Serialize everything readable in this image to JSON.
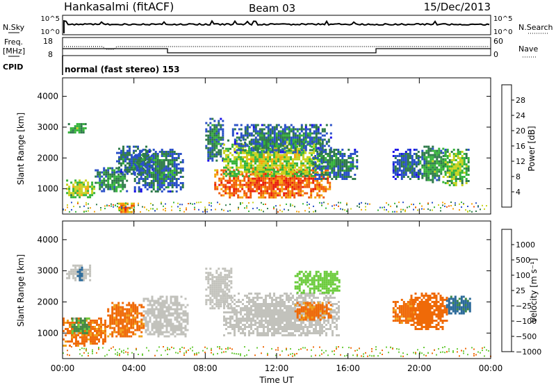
{
  "header": {
    "station": "Hankasalmi (fitACF)",
    "beam": "Beam 03",
    "date": "15/Dec/2013"
  },
  "top_panels": {
    "nsky_label": "N.Sky",
    "nsearch_label": "N.Search",
    "freq_label_1": "Freq.",
    "freq_label_2": "[MHz]",
    "nave_label": "Nave",
    "cpid_label": "CPID",
    "cpid_text": "normal (fast stereo) 153",
    "noise_ticks": {
      "top": "10^5",
      "bottom": "10^0"
    },
    "freq_ticks": {
      "top": "18",
      "bottom": "8"
    },
    "nave_ticks": {
      "top": "60",
      "bottom": "0"
    }
  },
  "chart_data": [
    {
      "type": "heatmap",
      "name": "power",
      "ylabel": "Slant Range [km]",
      "xlabel": "",
      "x_ticks": [
        "00:00",
        "04:00",
        "08:00",
        "12:00",
        "16:00",
        "20:00",
        "00:00"
      ],
      "x_range_hours": [
        0,
        24
      ],
      "y_ticks": [
        1000,
        2000,
        3000,
        4000
      ],
      "ylim": [
        180,
        4600
      ],
      "colorbar": {
        "label": "Power [dB]",
        "ticks": [
          "4",
          "8",
          "12",
          "16",
          "20",
          "24",
          "28"
        ],
        "colors": [
          "#1a10e8",
          "#2a50c8",
          "#2e7a4a",
          "#35b43a",
          "#c8d21e",
          "#f5a20a",
          "#f05a08",
          "#e81c08"
        ]
      },
      "echo_regions": [
        {
          "x": [
            0.3,
            1.3
          ],
          "y": [
            2800,
            3200
          ],
          "value": 14
        },
        {
          "x": [
            0.2,
            1.8
          ],
          "y": [
            700,
            1300
          ],
          "value": 18
        },
        {
          "x": [
            1.8,
            3.6
          ],
          "y": [
            900,
            1700
          ],
          "value": 12
        },
        {
          "x": [
            3.0,
            5.0
          ],
          "y": [
            1500,
            2400
          ],
          "value": 10
        },
        {
          "x": [
            4.0,
            6.8
          ],
          "y": [
            900,
            2300
          ],
          "value": 10
        },
        {
          "x": [
            3.0,
            4.0
          ],
          "y": [
            250,
            550
          ],
          "value": 25
        },
        {
          "x": [
            8.0,
            9.0
          ],
          "y": [
            1900,
            3300
          ],
          "value": 10
        },
        {
          "x": [
            8.5,
            15.0
          ],
          "y": [
            700,
            1700
          ],
          "value": 27
        },
        {
          "x": [
            9.0,
            14.5
          ],
          "y": [
            1400,
            2600
          ],
          "value": 18
        },
        {
          "x": [
            9.5,
            15.0
          ],
          "y": [
            2200,
            3100
          ],
          "value": 10
        },
        {
          "x": [
            14.0,
            16.5
          ],
          "y": [
            1300,
            2300
          ],
          "value": 11
        },
        {
          "x": [
            18.5,
            20.0
          ],
          "y": [
            1300,
            2300
          ],
          "value": 9
        },
        {
          "x": [
            20.0,
            21.5
          ],
          "y": [
            1200,
            2400
          ],
          "value": 13
        },
        {
          "x": [
            21.3,
            22.8
          ],
          "y": [
            1100,
            2300
          ],
          "value": 16
        }
      ]
    },
    {
      "type": "heatmap",
      "name": "velocity",
      "ylabel": "Slant Range [km]",
      "xlabel": "Time UT",
      "x_ticks": [
        "00:00",
        "04:00",
        "08:00",
        "12:00",
        "16:00",
        "20:00",
        "00:00"
      ],
      "x_range_hours": [
        0,
        24
      ],
      "y_ticks": [
        1000,
        2000,
        3000,
        4000
      ],
      "ylim": [
        180,
        4600
      ],
      "colorbar": {
        "label": "Velocity [m s⁻¹]",
        "ticks": [
          "1000",
          "500",
          "100",
          "25",
          "−25",
          "−100",
          "−500",
          "−1000"
        ],
        "colors": [
          "#1a3ad8",
          "#2c6a9a",
          "#3e8a48",
          "#6acb3a",
          "#c2c2bc",
          "#f0a018",
          "#ef6a08",
          "#e81a0a"
        ]
      },
      "echo_regions": [
        {
          "x": [
            0.2,
            1.5
          ],
          "y": [
            2700,
            3200
          ],
          "value": 0
        },
        {
          "x": [
            0.8,
            1.1
          ],
          "y": [
            2700,
            3200
          ],
          "value": 700
        },
        {
          "x": [
            0.0,
            2.5
          ],
          "y": [
            600,
            1500
          ],
          "value": -200
        },
        {
          "x": [
            0.5,
            1.5
          ],
          "y": [
            1000,
            1500
          ],
          "value": 150
        },
        {
          "x": [
            2.5,
            4.5
          ],
          "y": [
            900,
            2000
          ],
          "value": -200
        },
        {
          "x": [
            4.5,
            7.0
          ],
          "y": [
            900,
            2200
          ],
          "value": 0
        },
        {
          "x": [
            8.0,
            9.5
          ],
          "y": [
            1800,
            3100
          ],
          "value": 0
        },
        {
          "x": [
            9.0,
            15.5
          ],
          "y": [
            900,
            2300
          ],
          "value": 0
        },
        {
          "x": [
            13.0,
            15.0
          ],
          "y": [
            1400,
            2000
          ],
          "value": -200
        },
        {
          "x": [
            13.0,
            15.5
          ],
          "y": [
            2300,
            3000
          ],
          "value": 50
        },
        {
          "x": [
            18.5,
            20.0
          ],
          "y": [
            1300,
            2100
          ],
          "value": -200
        },
        {
          "x": [
            19.5,
            21.5
          ],
          "y": [
            1100,
            2300
          ],
          "value": -300
        },
        {
          "x": [
            21.5,
            22.8
          ],
          "y": [
            1600,
            2200
          ],
          "value": 600
        }
      ]
    }
  ]
}
